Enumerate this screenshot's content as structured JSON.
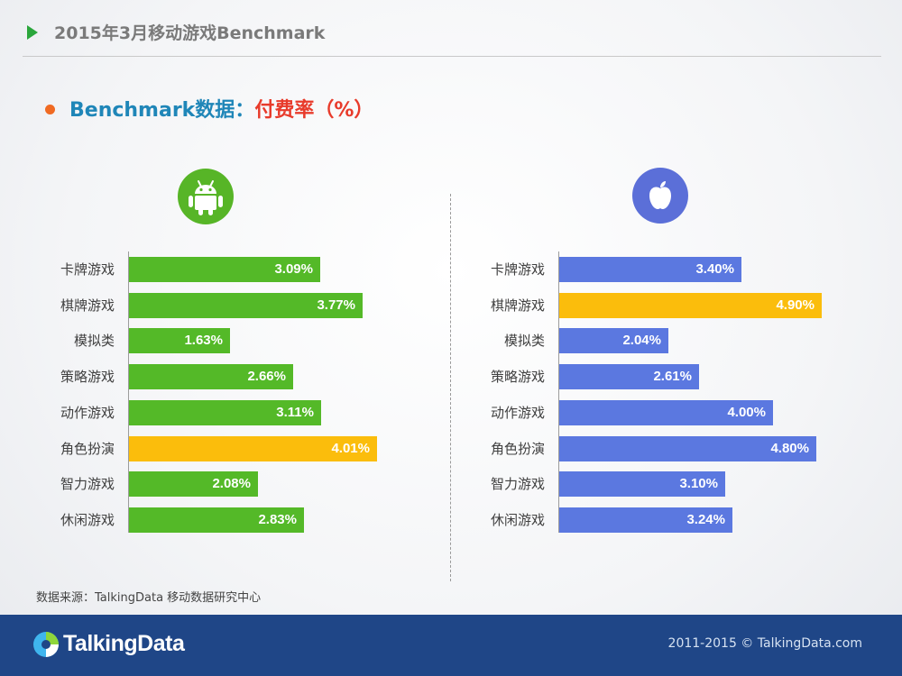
{
  "header": {
    "title": "2015年3月移动游戏Benchmark"
  },
  "subtitle": {
    "prefix": "Benchmark数据：",
    "highlight": "付费率（%）"
  },
  "icons": {
    "android": "android-icon",
    "apple": "apple-icon",
    "logo": "talkingdata-logo-icon"
  },
  "colors": {
    "android_bar": "#54b928",
    "ios_bar": "#5b78e0",
    "highlight_bar": "#fbbd0c"
  },
  "chart_data": [
    {
      "type": "bar",
      "orientation": "horizontal",
      "platform": "android",
      "categories": [
        "卡牌游戏",
        "棋牌游戏",
        "模拟类",
        "策略游戏",
        "动作游戏",
        "角色扮演",
        "智力游戏",
        "休闲游戏"
      ],
      "values": [
        3.09,
        3.77,
        1.63,
        2.66,
        3.11,
        4.01,
        2.08,
        2.83
      ],
      "value_labels": [
        "3.09%",
        "3.77%",
        "1.63%",
        "2.66%",
        "3.11%",
        "4.01%",
        "2.08%",
        "2.83%"
      ],
      "highlight_index": 5,
      "xlim": [
        0,
        5
      ]
    },
    {
      "type": "bar",
      "orientation": "horizontal",
      "platform": "ios",
      "categories": [
        "卡牌游戏",
        "棋牌游戏",
        "模拟类",
        "策略游戏",
        "动作游戏",
        "角色扮演",
        "智力游戏",
        "休闲游戏"
      ],
      "values": [
        3.4,
        4.9,
        2.04,
        2.61,
        4.0,
        4.8,
        3.1,
        3.24
      ],
      "value_labels": [
        "3.40%",
        "4.90%",
        "2.04%",
        "2.61%",
        "4.00%",
        "4.80%",
        "3.10%",
        "3.24%"
      ],
      "highlight_index": 1,
      "xlim": [
        0,
        5
      ]
    }
  ],
  "source": "数据来源：TalkingData 移动数据研究中心",
  "footer": {
    "brand": "TalkingData",
    "copyright": "2011-2015 © TalkingData.com"
  }
}
